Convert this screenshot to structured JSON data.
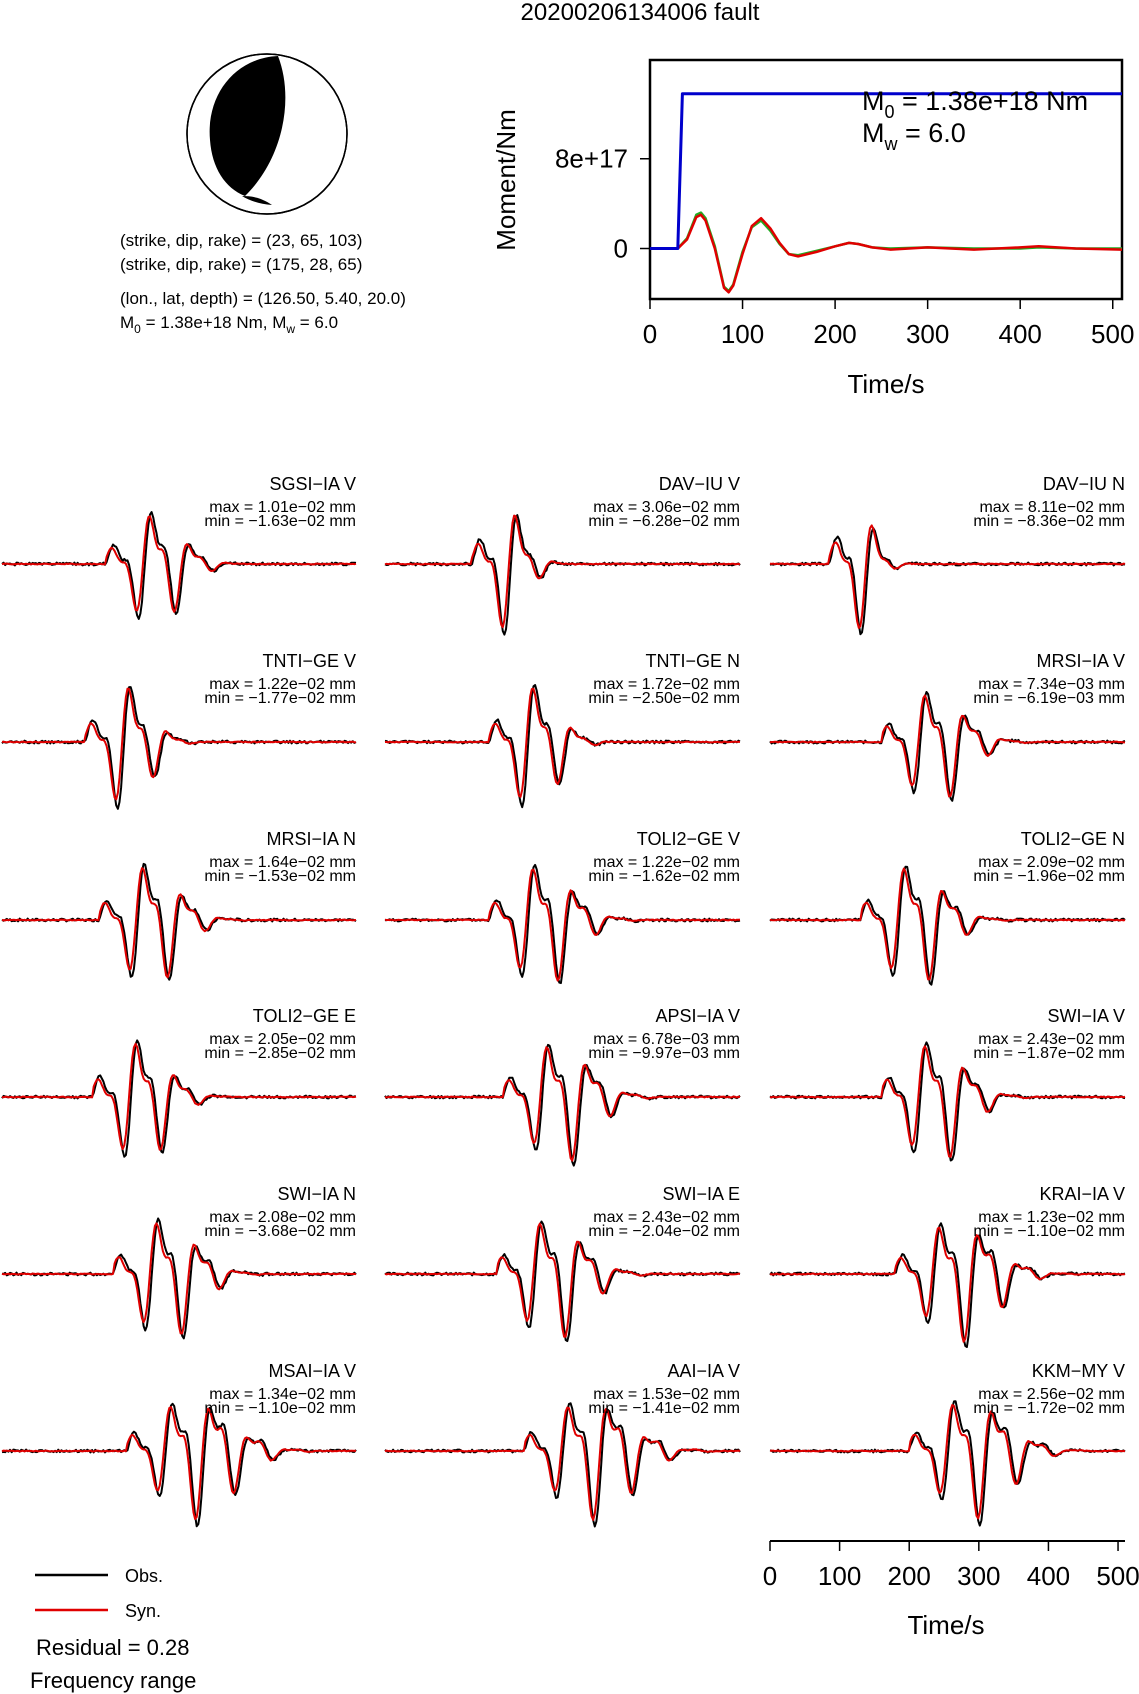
{
  "title": "20200206134006 fault",
  "mechanism": {
    "lines": [
      "(strike, dip, rake) = (23, 65, 103)",
      "(strike, dip, rake) = (175, 28, 65)",
      "(lon., lat, depth) = (126.50, 5.40, 20.0)"
    ],
    "m0_line": {
      "m0_prefix": "M",
      "m0_sub": "0",
      "m0_value": " = 1.38e+18 Nm, M",
      "mw_sub": "w",
      "mw_value": " = 6.0"
    }
  },
  "legend": {
    "obs": "Obs.",
    "syn": "Syn."
  },
  "residual": "Residual = 0.28",
  "frequency_range": "Frequency range",
  "colors": {
    "observed": "#000000",
    "synthetic": "#e00000",
    "stf": "#0000cc",
    "stf_green": "#22aa22"
  },
  "chart_data": [
    {
      "type": "line",
      "title": "",
      "xlabel": "Time/s",
      "ylabel": "Moment/Nm",
      "xlim": [
        0,
        510
      ],
      "ylim": [
        -4.5e+17,
        1.68e+18
      ],
      "xticks": [
        "0",
        "100",
        "200",
        "300",
        "400",
        "500"
      ],
      "yticks": [
        "0",
        "8e+17"
      ],
      "annotation": {
        "m0_prefix": "M",
        "m0_sub": "0",
        "m0_value": " = 1.38e+18 Nm",
        "mw_prefix": "M",
        "mw_sub": "w",
        "mw_value": " = 6.0"
      },
      "series": [
        {
          "color": "#0000cc",
          "x": [
            0,
            30,
            35,
            510
          ],
          "y": [
            0,
            0,
            1.38e+18,
            1.38e+18
          ]
        },
        {
          "color": "#e00000",
          "x": [
            0,
            30,
            40,
            50,
            55,
            60,
            70,
            80,
            85,
            90,
            100,
            110,
            120,
            130,
            140,
            150,
            160,
            180,
            200,
            215,
            225,
            240,
            260,
            300,
            350,
            400,
            420,
            460,
            510
          ],
          "y": [
            0,
            0,
            8e+16,
            2.8e+17,
            3e+17,
            2.5e+17,
            0,
            -3.5e+17,
            -3.9e+17,
            -3.3e+17,
            -5e+16,
            2e+17,
            2.7e+17,
            1.8e+17,
            5e+16,
            -5e+16,
            -7e+16,
            -3e+16,
            2e+16,
            5e+16,
            4e+16,
            1e+16,
            -1e+16,
            1e+16,
            -1e+16,
            1e+16,
            2e+16,
            0,
            -1e+16
          ]
        },
        {
          "color": "#22aa22",
          "x": [
            0,
            30,
            40,
            50,
            55,
            60,
            70,
            80,
            85,
            90,
            100,
            110,
            120,
            130,
            140,
            150,
            160,
            180,
            200,
            215,
            225,
            240,
            260,
            300,
            350,
            400,
            420,
            460,
            510
          ],
          "y": [
            0,
            0,
            9e+16,
            3e+17,
            3.2e+17,
            2.7e+17,
            2e+16,
            -3.4e+17,
            -3.8e+17,
            -3.2e+17,
            -3e+16,
            1.9e+17,
            2.5e+17,
            1.6e+17,
            4e+16,
            -5e+16,
            -6e+16,
            -2e+16,
            2e+16,
            5e+16,
            4e+16,
            1e+16,
            0,
            1e+16,
            0,
            0,
            1e+16,
            0,
            0
          ]
        }
      ]
    },
    {
      "type": "line",
      "title": "",
      "xlabel": "Time/s",
      "xlim": [
        0,
        510
      ],
      "xticks": [
        "0",
        "100",
        "200",
        "300",
        "400",
        "500"
      ],
      "traces": [
        {
          "station": "SGSI−IA V",
          "max": "max = 1.01e−02 mm",
          "min": "min = −1.63e−02 mm",
          "x0": 150,
          "dur": 200,
          "amp": 1.0,
          "seed": 1
        },
        {
          "station": "DAV−IU V",
          "max": "max = 3.06e−02 mm",
          "min": "min = −6.28e−02 mm",
          "x0": 125,
          "dur": 140,
          "amp": 1.1,
          "seed": 2
        },
        {
          "station": "DAV−IU N",
          "max": "max = 8.11e−02 mm",
          "min": "min = −8.36e−02 mm",
          "x0": 85,
          "dur": 120,
          "amp": 1.1,
          "seed": 3
        },
        {
          "station": "TNTI−GE V",
          "max": "max = 1.22e−02 mm",
          "min": "min = −1.77e−02 mm",
          "x0": 120,
          "dur": 170,
          "amp": 1.1,
          "seed": 4
        },
        {
          "station": "TNTI−GE N",
          "max": "max = 1.72e−02 mm",
          "min": "min = −2.50e−02 mm",
          "x0": 150,
          "dur": 180,
          "amp": 1.1,
          "seed": 5
        },
        {
          "station": "MRSI−IA V",
          "max": "max = 7.34e−03 mm",
          "min": "min = −6.19e−03 mm",
          "x0": 160,
          "dur": 220,
          "amp": 1.0,
          "seed": 6
        },
        {
          "station": "MRSI−IA N",
          "max": "max = 1.64e−02 mm",
          "min": "min = −1.53e−02 mm",
          "x0": 140,
          "dur": 210,
          "amp": 1.1,
          "seed": 7
        },
        {
          "station": "TOLI2−GE V",
          "max": "max = 1.22e−02 mm",
          "min": "min = −1.62e−02 mm",
          "x0": 150,
          "dur": 220,
          "amp": 1.1,
          "seed": 8
        },
        {
          "station": "TOLI2−GE N",
          "max": "max = 2.09e−02 mm",
          "min": "min = −1.96e−02 mm",
          "x0": 130,
          "dur": 220,
          "amp": 1.1,
          "seed": 9
        },
        {
          "station": "TOLI2−GE E",
          "max": "max = 2.05e−02 mm",
          "min": "min = −2.85e−02 mm",
          "x0": 130,
          "dur": 200,
          "amp": 1.1,
          "seed": 10
        },
        {
          "station": "APSI−IA V",
          "max": "max = 6.78e−03 mm",
          "min": "min = −9.97e−03 mm",
          "x0": 170,
          "dur": 230,
          "amp": 1.1,
          "seed": 11
        },
        {
          "station": "SWI−IA V",
          "max": "max = 2.43e−02 mm",
          "min": "min = −1.87e−02 mm",
          "x0": 160,
          "dur": 220,
          "amp": 1.1,
          "seed": 12
        },
        {
          "station": "SWI−IA N",
          "max": "max = 2.08e−02 mm",
          "min": "min = −3.68e−02 mm",
          "x0": 160,
          "dur": 220,
          "amp": 1.1,
          "seed": 13
        },
        {
          "station": "SWI−IA E",
          "max": "max = 2.43e−02 mm",
          "min": "min = −2.04e−02 mm",
          "x0": 160,
          "dur": 230,
          "amp": 1.1,
          "seed": 14
        },
        {
          "station": "KRAI−IA V",
          "max": "max = 1.23e−02 mm",
          "min": "min = −1.10e−02 mm",
          "x0": 180,
          "dur": 260,
          "amp": 1.1,
          "seed": 15
        },
        {
          "station": "MSAI−IA V",
          "max": "max = 1.34e−02 mm",
          "min": "min = −1.10e−02 mm",
          "x0": 180,
          "dur": 280,
          "amp": 1.1,
          "seed": 16
        },
        {
          "station": "AAI−IA V",
          "max": "max = 1.53e−02 mm",
          "min": "min = −1.41e−02 mm",
          "x0": 200,
          "dur": 280,
          "amp": 1.1,
          "seed": 17
        },
        {
          "station": "KKM−MY V",
          "max": "max = 2.56e−02 mm",
          "min": "min = −1.72e−02 mm",
          "x0": 200,
          "dur": 260,
          "amp": 1.1,
          "seed": 18
        }
      ]
    }
  ]
}
